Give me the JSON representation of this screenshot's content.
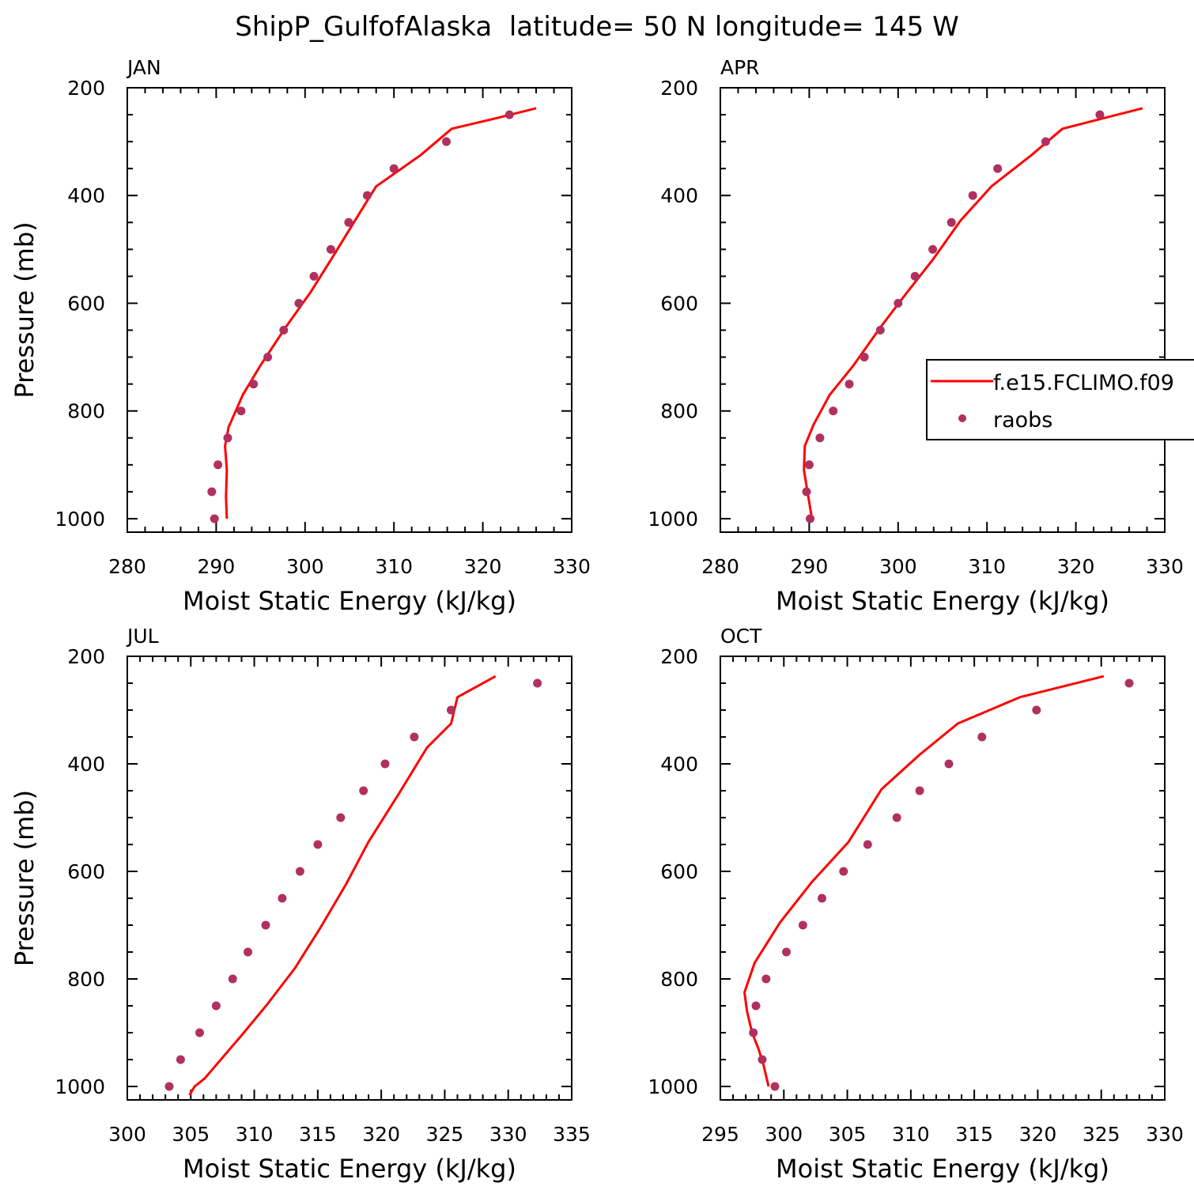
{
  "title": "ShipP_GulfofAlaska  latitude= 50 N longitude= 145 W",
  "colors": {
    "model": "#ff0000",
    "obs": "#b03060",
    "axis": "#000000"
  },
  "legend": {
    "placement": "overlapping right edge of APR panel",
    "entries": [
      {
        "label": "f.e15.FCLIMO.f09",
        "kind": "line"
      },
      {
        "label": "raobs",
        "kind": "marker"
      }
    ]
  },
  "chart_data": [
    {
      "type": "line",
      "panel": "JAN",
      "xlabel": "Moist Static Energy (kJ/kg)",
      "ylabel": "Pressure (mb)",
      "xlim": [
        280,
        330
      ],
      "xticks": [
        280,
        290,
        300,
        310,
        320,
        330
      ],
      "ylim": [
        200,
        1025
      ],
      "yticks": [
        200,
        400,
        600,
        800,
        1000
      ],
      "y_inverted": true,
      "series": [
        {
          "name": "f.e15.FCLIMO.f09",
          "style": "line",
          "points": [
            [
              291.2,
              1000
            ],
            [
              291.1,
              960
            ],
            [
              291.2,
              910
            ],
            [
              291.0,
              865
            ],
            [
              291.4,
              830
            ],
            [
              293.0,
              770
            ],
            [
              295.0,
              715
            ],
            [
              297.8,
              645
            ],
            [
              300.6,
              580
            ],
            [
              303.0,
              517
            ],
            [
              305.6,
              447
            ],
            [
              308.0,
              383
            ],
            [
              313.0,
              325
            ],
            [
              316.5,
              276
            ],
            [
              321.4,
              257
            ],
            [
              326.0,
              238
            ]
          ]
        },
        {
          "name": "raobs",
          "style": "marker",
          "points": [
            [
              289.8,
              1000
            ],
            [
              289.5,
              950
            ],
            [
              290.2,
              900
            ],
            [
              291.3,
              850
            ],
            [
              292.8,
              800
            ],
            [
              294.2,
              750
            ],
            [
              295.8,
              700
            ],
            [
              297.6,
              650
            ],
            [
              299.3,
              600
            ],
            [
              301.0,
              550
            ],
            [
              302.9,
              500
            ],
            [
              304.9,
              450
            ],
            [
              307.0,
              400
            ],
            [
              310.0,
              350
            ],
            [
              315.9,
              300
            ],
            [
              323.0,
              250
            ]
          ]
        }
      ]
    },
    {
      "type": "line",
      "panel": "APR",
      "xlabel": "Moist Static Energy (kJ/kg)",
      "ylabel": "",
      "xlim": [
        280,
        330
      ],
      "xticks": [
        280,
        290,
        300,
        310,
        320,
        330
      ],
      "ylim": [
        200,
        1025
      ],
      "yticks": [
        200,
        400,
        600,
        800,
        1000
      ],
      "y_inverted": true,
      "series": [
        {
          "name": "f.e15.FCLIMO.f09",
          "style": "line",
          "points": [
            [
              290.3,
              1000
            ],
            [
              289.8,
              950
            ],
            [
              289.4,
              910
            ],
            [
              289.5,
              865
            ],
            [
              290.5,
              825
            ],
            [
              292.3,
              770
            ],
            [
              295.0,
              715
            ],
            [
              298.0,
              645
            ],
            [
              301.0,
              580
            ],
            [
              304.0,
              517
            ],
            [
              307.0,
              447
            ],
            [
              310.5,
              383
            ],
            [
              315.0,
              325
            ],
            [
              318.5,
              276
            ],
            [
              323.0,
              257
            ],
            [
              327.5,
              238
            ]
          ]
        },
        {
          "name": "raobs",
          "style": "marker",
          "points": [
            [
              290.1,
              1000
            ],
            [
              289.7,
              950
            ],
            [
              290.0,
              900
            ],
            [
              291.2,
              850
            ],
            [
              292.7,
              800
            ],
            [
              294.5,
              750
            ],
            [
              296.2,
              700
            ],
            [
              298.0,
              650
            ],
            [
              300.0,
              600
            ],
            [
              301.9,
              550
            ],
            [
              303.9,
              500
            ],
            [
              306.0,
              450
            ],
            [
              308.4,
              400
            ],
            [
              311.2,
              350
            ],
            [
              316.6,
              300
            ],
            [
              322.7,
              250
            ]
          ]
        }
      ]
    },
    {
      "type": "line",
      "panel": "JUL",
      "xlabel": "Moist Static Energy (kJ/kg)",
      "ylabel": "Pressure (mb)",
      "xlim": [
        300,
        335
      ],
      "xticks": [
        300,
        305,
        310,
        315,
        320,
        325,
        330,
        335
      ],
      "ylim": [
        200,
        1025
      ],
      "yticks": [
        200,
        400,
        600,
        800,
        1000
      ],
      "y_inverted": true,
      "series": [
        {
          "name": "f.e15.FCLIMO.f09",
          "style": "line",
          "points": [
            [
              304.9,
              1016
            ],
            [
              305.3,
              1000
            ],
            [
              306.1,
              985
            ],
            [
              307.0,
              960
            ],
            [
              309.0,
              905
            ],
            [
              311.0,
              848
            ],
            [
              313.2,
              780
            ],
            [
              315.2,
              705
            ],
            [
              317.2,
              625
            ],
            [
              319.0,
              545
            ],
            [
              321.4,
              455
            ],
            [
              323.6,
              370
            ],
            [
              325.5,
              325
            ],
            [
              326.0,
              276
            ],
            [
              329.0,
              237
            ]
          ]
        },
        {
          "name": "raobs",
          "style": "marker",
          "points": [
            [
              303.3,
              1000
            ],
            [
              304.2,
              950
            ],
            [
              305.7,
              900
            ],
            [
              307.0,
              850
            ],
            [
              308.3,
              800
            ],
            [
              309.5,
              750
            ],
            [
              310.9,
              700
            ],
            [
              312.2,
              650
            ],
            [
              313.6,
              600
            ],
            [
              315.0,
              550
            ],
            [
              316.8,
              500
            ],
            [
              318.6,
              450
            ],
            [
              320.3,
              400
            ],
            [
              322.6,
              350
            ],
            [
              325.5,
              300
            ],
            [
              332.3,
              250
            ]
          ]
        }
      ]
    },
    {
      "type": "line",
      "panel": "OCT",
      "xlabel": "Moist Static Energy (kJ/kg)",
      "ylabel": "",
      "xlim": [
        295,
        330
      ],
      "xticks": [
        295,
        300,
        305,
        310,
        315,
        320,
        325,
        330
      ],
      "ylim": [
        200,
        1025
      ],
      "yticks": [
        200,
        400,
        600,
        800,
        1000
      ],
      "y_inverted": true,
      "series": [
        {
          "name": "f.e15.FCLIMO.f09",
          "style": "line",
          "points": [
            [
              298.8,
              1000
            ],
            [
              298.4,
              960
            ],
            [
              298.0,
              930
            ],
            [
              297.5,
              900
            ],
            [
              297.1,
              860
            ],
            [
              296.9,
              825
            ],
            [
              297.7,
              770
            ],
            [
              299.7,
              695
            ],
            [
              302.2,
              620
            ],
            [
              305.1,
              545
            ],
            [
              307.7,
              447
            ],
            [
              310.7,
              383
            ],
            [
              313.7,
              325
            ],
            [
              318.6,
              276
            ],
            [
              325.2,
              237
            ]
          ]
        },
        {
          "name": "raobs",
          "style": "marker",
          "points": [
            [
              299.3,
              1000
            ],
            [
              298.3,
              950
            ],
            [
              297.6,
              900
            ],
            [
              297.8,
              850
            ],
            [
              298.6,
              800
            ],
            [
              300.2,
              750
            ],
            [
              301.5,
              700
            ],
            [
              303.0,
              650
            ],
            [
              304.7,
              600
            ],
            [
              306.6,
              550
            ],
            [
              308.9,
              500
            ],
            [
              310.7,
              450
            ],
            [
              313.0,
              400
            ],
            [
              315.6,
              350
            ],
            [
              319.9,
              300
            ],
            [
              327.2,
              250
            ]
          ]
        }
      ]
    }
  ]
}
